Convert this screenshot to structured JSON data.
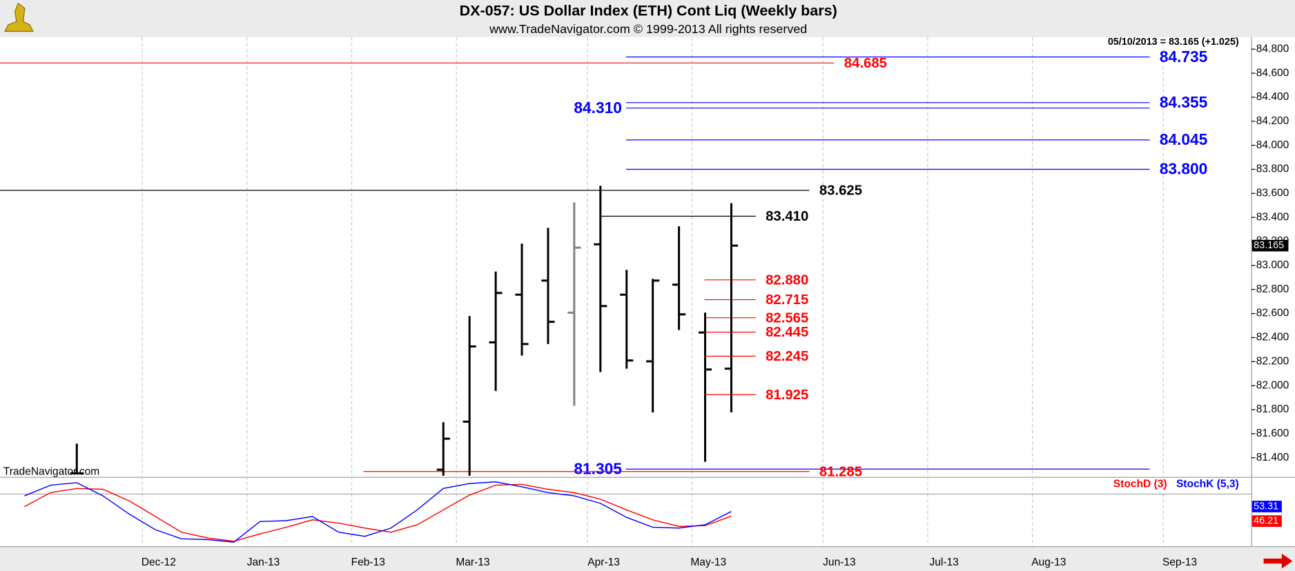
{
  "chart_data": {
    "type": "ohlc",
    "title": "DX-057:  US Dollar Index (ETH) Cont Liq  (Weekly bars)",
    "subtitle": "www.TradeNavigator.com © 1999-2013 All rights reserved",
    "header_note": "05/10/2013 = 83.165 (+1.025)",
    "watermark": "TradeNavigator.com",
    "categories": [
      null,
      null,
      null,
      null,
      null,
      null,
      "Dec-12",
      null,
      null,
      null,
      "Jan-13",
      null,
      null,
      null,
      "Feb-13",
      null,
      null,
      null,
      "Mar-13",
      null,
      null,
      null,
      null,
      "Apr-13",
      null,
      null,
      null,
      "May-13",
      null,
      null,
      null,
      null,
      "Jun-13",
      null,
      null,
      null,
      "Jul-13",
      null,
      null,
      null,
      "Aug-13",
      null,
      null,
      null,
      null,
      "Sep-13",
      null,
      null
    ],
    "grid": true,
    "ylim": [
      81.24,
      84.9
    ],
    "yticks": [
      {
        "value": 81.4,
        "label": "81.400"
      },
      {
        "value": 81.6,
        "label": "81.600"
      },
      {
        "value": 81.8,
        "label": "81.800"
      },
      {
        "value": 82.0,
        "label": "82.000"
      },
      {
        "value": 82.2,
        "label": "82.200"
      },
      {
        "value": 82.4,
        "label": "82.400"
      },
      {
        "value": 82.6,
        "label": "82.600"
      },
      {
        "value": 82.8,
        "label": "82.800"
      },
      {
        "value": 83.0,
        "label": "83.000"
      },
      {
        "value": 83.2,
        "label": "83.200"
      },
      {
        "value": 83.4,
        "label": "83.400"
      },
      {
        "value": 83.6,
        "label": "83.600"
      },
      {
        "value": 83.8,
        "label": "83.800"
      },
      {
        "value": 84.0,
        "label": "84.000"
      },
      {
        "value": 84.2,
        "label": "84.200"
      },
      {
        "value": 84.4,
        "label": "84.400"
      },
      {
        "value": 84.6,
        "label": "84.600"
      },
      {
        "value": 84.8,
        "label": "84.800"
      }
    ],
    "ohlc": {
      "open": [
        null,
        null,
        null,
        81.27,
        null,
        null,
        null,
        null,
        null,
        null,
        null,
        null,
        null,
        null,
        null,
        null,
        null,
        81.3,
        81.7,
        82.36,
        82.757,
        82.874,
        82.607,
        83.176,
        82.757,
        82.202,
        82.84,
        82.442,
        82.141,
        null,
        null,
        null,
        null,
        null,
        null,
        null,
        null,
        null,
        null,
        null,
        null,
        null,
        null,
        null,
        null,
        null,
        null,
        null
      ],
      "high": [
        null,
        null,
        null,
        81.517,
        null,
        null,
        null,
        null,
        null,
        null,
        null,
        null,
        null,
        null,
        null,
        null,
        null,
        81.695,
        82.579,
        82.949,
        83.182,
        83.313,
        83.525,
        83.663,
        82.963,
        82.888,
        83.326,
        82.607,
        83.518,
        null,
        null,
        null,
        null,
        null,
        null,
        null,
        null,
        null,
        null,
        null,
        null,
        null,
        null,
        null,
        null,
        null,
        null,
        null
      ],
      "low": [
        null,
        null,
        null,
        81.27,
        null,
        null,
        null,
        null,
        null,
        null,
        null,
        null,
        null,
        null,
        null,
        null,
        null,
        81.25,
        81.25,
        81.956,
        82.25,
        82.346,
        81.832,
        82.113,
        82.141,
        81.777,
        82.463,
        81.366,
        81.777,
        null,
        null,
        null,
        null,
        null,
        null,
        null,
        null,
        null,
        null,
        null,
        null,
        null,
        null,
        null,
        null,
        null,
        null,
        null
      ],
      "close": [
        null,
        null,
        null,
        81.27,
        null,
        null,
        null,
        null,
        null,
        null,
        null,
        null,
        null,
        null,
        null,
        null,
        null,
        81.558,
        82.326,
        82.771,
        82.346,
        82.531,
        83.148,
        82.662,
        82.209,
        82.874,
        82.593,
        82.134,
        83.165,
        null,
        null,
        null,
        null,
        null,
        null,
        null,
        null,
        null,
        null,
        null,
        null,
        null,
        null,
        null,
        null,
        null,
        null,
        null
      ],
      "color": "#000000",
      "colors": [
        null,
        null,
        null,
        "#000000",
        null,
        null,
        null,
        null,
        null,
        null,
        null,
        null,
        null,
        null,
        null,
        null,
        null,
        "#000000",
        "#000000",
        "#000000",
        "#000000",
        "#000000",
        "#808080",
        "#000000",
        "#000000",
        "#000000",
        "#000000",
        "#000000",
        "#000000",
        null,
        null,
        null,
        null,
        null,
        null,
        null,
        null,
        null,
        null,
        null,
        null,
        null,
        null,
        null,
        null,
        null,
        null,
        null
      ]
    },
    "levels": [
      {
        "value": 84.685,
        "label": "84.685",
        "color": "#ff0000"
      },
      {
        "value": 84.735,
        "label": "84.735",
        "color": "#0000ff"
      },
      {
        "value": 84.355,
        "label": "84.355",
        "color": "#0000ff"
      },
      {
        "value": 84.31,
        "label": "84.310",
        "color": "#0000ff"
      },
      {
        "value": 84.045,
        "label": "84.045",
        "color": "#0000ff"
      },
      {
        "value": 83.8,
        "label": "83.800",
        "color": "#0000ff"
      },
      {
        "value": 83.625,
        "label": "83.625",
        "color": "#000000"
      },
      {
        "value": 83.41,
        "label": "83.410",
        "color": "#000000"
      },
      {
        "value": 82.88,
        "label": "82.880",
        "color": "#ff0000"
      },
      {
        "value": 82.715,
        "label": "82.715",
        "color": "#ff0000"
      },
      {
        "value": 82.565,
        "label": "82.565",
        "color": "#ff0000"
      },
      {
        "value": 82.445,
        "label": "82.445",
        "color": "#ff0000"
      },
      {
        "value": 82.245,
        "label": "82.245",
        "color": "#ff0000"
      },
      {
        "value": 81.925,
        "label": "81.925",
        "color": "#ff0000"
      },
      {
        "value": 81.305,
        "label": "81.305",
        "color": "#0000ff"
      },
      {
        "value": 81.285,
        "label": "81.285",
        "color": "#ff0000"
      }
    ],
    "lower_panel": {
      "ylim": [
        0,
        100
      ],
      "ref_lines": [
        80
      ],
      "series": [
        {
          "name": "StochD (3)",
          "color": "#ff0000",
          "values": [
            null,
            60.8,
            82.3,
            88.6,
            87.3,
            69.6,
            45.6,
            21.5,
            12.7,
            7.6,
            19.0,
            29.1,
            40.5,
            35.4,
            27.8,
            21.5,
            32.9,
            55.7,
            78.5,
            93.7,
            94.9,
            87.3,
            82.3,
            72.2,
            55.7,
            40.5,
            30.4,
            31.6,
            46.21,
            null,
            null,
            null,
            null,
            null,
            null,
            null,
            null,
            null,
            null,
            null,
            null,
            null,
            null,
            null,
            null,
            null,
            null,
            null
          ]
        },
        {
          "name": "StochK (5,3)",
          "color": "#0000ff",
          "values": [
            null,
            77.2,
            93.7,
            97.5,
            77.2,
            49.4,
            25.3,
            11.4,
            10.1,
            6.3,
            38.0,
            39.2,
            45.6,
            21.5,
            15.2,
            27.8,
            55.7,
            88.6,
            96.2,
            98.7,
            91.1,
            82.3,
            77.2,
            65.8,
            44.3,
            29.1,
            27.8,
            32.9,
            53.31,
            null,
            null,
            null,
            null,
            null,
            null,
            null,
            null,
            null,
            null,
            null,
            null,
            null,
            null,
            null,
            null,
            null,
            null,
            null
          ]
        }
      ]
    }
  }
}
